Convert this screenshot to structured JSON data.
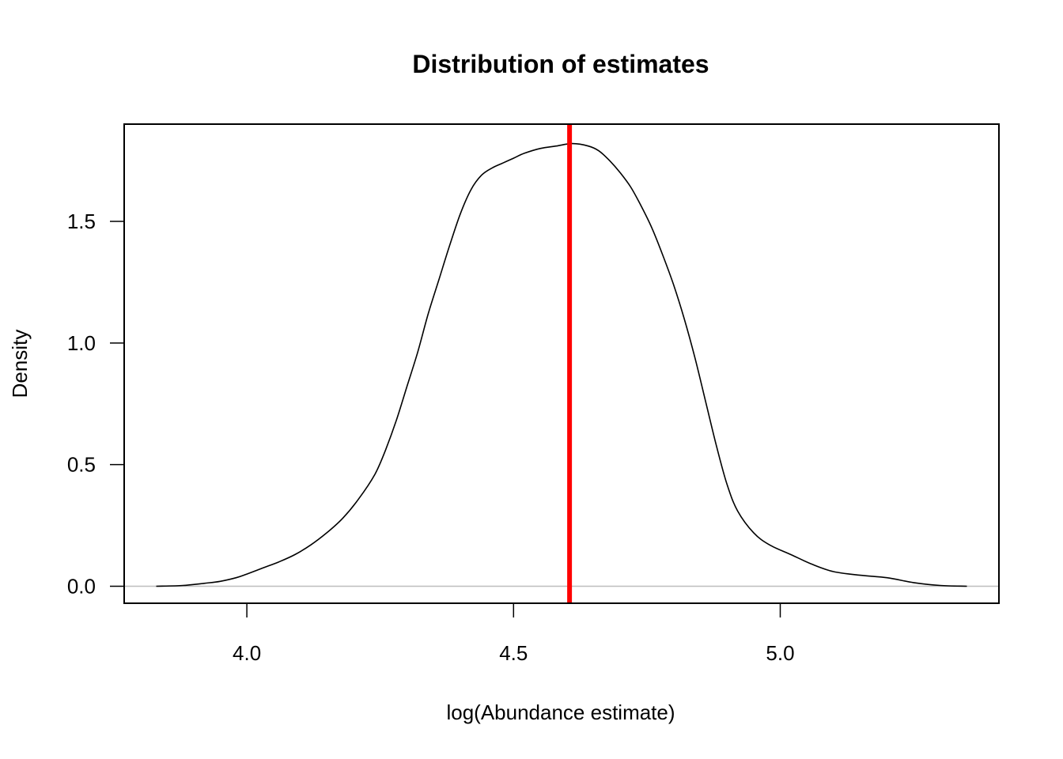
{
  "chart_data": {
    "type": "line",
    "title": "Distribution of estimates",
    "xlabel": "log(Abundance estimate)",
    "ylabel": "Density",
    "xlim": [
      3.77,
      5.41
    ],
    "ylim": [
      -0.07,
      1.9
    ],
    "x_ticks": [
      4.0,
      4.5,
      5.0
    ],
    "x_tick_labels": [
      "4.0",
      "4.5",
      "5.0"
    ],
    "y_ticks": [
      0.0,
      0.5,
      1.0,
      1.5
    ],
    "y_tick_labels": [
      "0.0",
      "0.5",
      "1.0",
      "1.5"
    ],
    "grid": false,
    "legend": "none",
    "baseline": {
      "y": 0,
      "color": "#bebebe"
    },
    "vline": {
      "x": 4.605,
      "color": "#ff0000"
    },
    "series": [
      {
        "color": "#000000",
        "x": [
          3.83,
          3.88,
          3.92,
          3.95,
          3.98,
          4.0,
          4.03,
          4.06,
          4.09,
          4.12,
          4.15,
          4.18,
          4.21,
          4.24,
          4.26,
          4.28,
          4.3,
          4.32,
          4.34,
          4.36,
          4.38,
          4.4,
          4.42,
          4.44,
          4.46,
          4.48,
          4.5,
          4.52,
          4.55,
          4.58,
          4.61,
          4.64,
          4.66,
          4.68,
          4.7,
          4.72,
          4.74,
          4.76,
          4.78,
          4.8,
          4.82,
          4.84,
          4.86,
          4.88,
          4.9,
          4.92,
          4.95,
          4.98,
          5.02,
          5.06,
          5.1,
          5.15,
          5.2,
          5.25,
          5.3,
          5.35
        ],
        "y": [
          0.0,
          0.003,
          0.012,
          0.02,
          0.035,
          0.05,
          0.075,
          0.1,
          0.13,
          0.17,
          0.22,
          0.28,
          0.36,
          0.46,
          0.56,
          0.68,
          0.82,
          0.96,
          1.12,
          1.26,
          1.4,
          1.53,
          1.63,
          1.69,
          1.72,
          1.74,
          1.76,
          1.78,
          1.8,
          1.81,
          1.82,
          1.81,
          1.79,
          1.75,
          1.7,
          1.64,
          1.56,
          1.47,
          1.36,
          1.24,
          1.1,
          0.94,
          0.76,
          0.58,
          0.42,
          0.31,
          0.22,
          0.17,
          0.13,
          0.09,
          0.06,
          0.045,
          0.035,
          0.015,
          0.003,
          0.0
        ]
      }
    ]
  }
}
